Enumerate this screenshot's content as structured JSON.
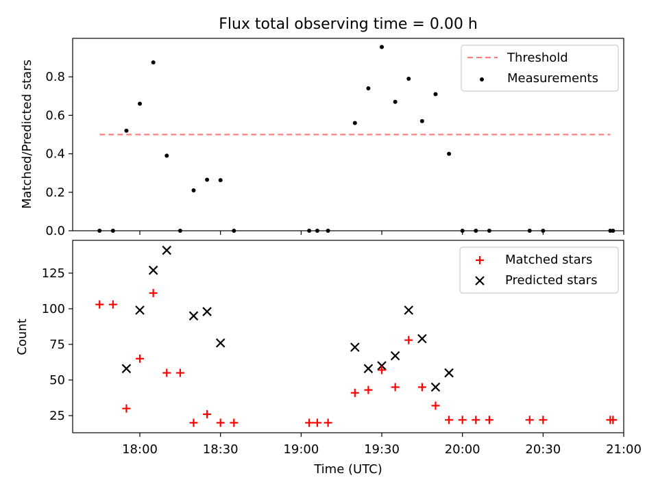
{
  "chart_data": [
    {
      "type": "scatter",
      "title": "Flux total observing time = 0.00 h",
      "xlabel": "",
      "ylabel": "Matched/Predicted stars",
      "xlim": [
        "17:35",
        "21:00"
      ],
      "ylim": [
        0,
        1.0
      ],
      "yticks": [
        0.0,
        0.2,
        0.4,
        0.6,
        0.8
      ],
      "ytick_labels": [
        "0.0",
        "0.2",
        "0.4",
        "0.6",
        "0.8"
      ],
      "grid": false,
      "legend": "top-right",
      "threshold": {
        "name": "Threshold",
        "y": 0.5,
        "x_start": "17:45",
        "x_end": "20:55",
        "color": "#ff7f7f",
        "style": "dashed"
      },
      "series": [
        {
          "name": "Measurements",
          "marker": "dot",
          "color": "#000000",
          "points": [
            {
              "x": "17:45",
              "y": 0.0
            },
            {
              "x": "17:50",
              "y": 0.0
            },
            {
              "x": "17:55",
              "y": 0.52
            },
            {
              "x": "18:00",
              "y": 0.66
            },
            {
              "x": "18:05",
              "y": 0.875
            },
            {
              "x": "18:10",
              "y": 0.39
            },
            {
              "x": "18:15",
              "y": 0.0
            },
            {
              "x": "18:20",
              "y": 0.21
            },
            {
              "x": "18:25",
              "y": 0.265
            },
            {
              "x": "18:30",
              "y": 0.263
            },
            {
              "x": "18:35",
              "y": 0.0
            },
            {
              "x": "19:03",
              "y": 0.0
            },
            {
              "x": "19:06",
              "y": 0.0
            },
            {
              "x": "19:10",
              "y": 0.0
            },
            {
              "x": "19:20",
              "y": 0.56
            },
            {
              "x": "19:25",
              "y": 0.74
            },
            {
              "x": "19:30",
              "y": 0.955
            },
            {
              "x": "19:35",
              "y": 0.67
            },
            {
              "x": "19:40",
              "y": 0.79
            },
            {
              "x": "19:45",
              "y": 0.57
            },
            {
              "x": "19:50",
              "y": 0.71
            },
            {
              "x": "19:55",
              "y": 0.4
            },
            {
              "x": "20:00",
              "y": 0.0
            },
            {
              "x": "20:05",
              "y": 0.0
            },
            {
              "x": "20:10",
              "y": 0.0
            },
            {
              "x": "20:25",
              "y": 0.0
            },
            {
              "x": "20:30",
              "y": 0.0
            },
            {
              "x": "20:55",
              "y": 0.0
            },
            {
              "x": "20:56",
              "y": 0.0
            }
          ]
        }
      ]
    },
    {
      "type": "scatter",
      "title": "",
      "xlabel": "Time (UTC)",
      "ylabel": "Count",
      "xlim": [
        "17:35",
        "21:00"
      ],
      "ylim": [
        13,
        148
      ],
      "yticks": [
        25,
        50,
        75,
        100,
        125
      ],
      "ytick_labels": [
        "25",
        "50",
        "75",
        "100",
        "125"
      ],
      "xticks": [
        "18:00",
        "18:30",
        "19:00",
        "19:30",
        "20:00",
        "20:30",
        "21:00"
      ],
      "xtick_labels": [
        "18:00",
        "18:30",
        "19:00",
        "19:30",
        "20:00",
        "20:30",
        "21:00"
      ],
      "grid": false,
      "legend": "top-right",
      "series": [
        {
          "name": "Matched stars",
          "marker": "plus",
          "color": "#ff0000",
          "points": [
            {
              "x": "17:45",
              "y": 103
            },
            {
              "x": "17:50",
              "y": 103
            },
            {
              "x": "17:55",
              "y": 30
            },
            {
              "x": "18:00",
              "y": 65
            },
            {
              "x": "18:05",
              "y": 111
            },
            {
              "x": "18:10",
              "y": 55
            },
            {
              "x": "18:15",
              "y": 55
            },
            {
              "x": "18:20",
              "y": 20
            },
            {
              "x": "18:25",
              "y": 26
            },
            {
              "x": "18:30",
              "y": 20
            },
            {
              "x": "18:35",
              "y": 20
            },
            {
              "x": "19:03",
              "y": 20
            },
            {
              "x": "19:06",
              "y": 20
            },
            {
              "x": "19:10",
              "y": 20
            },
            {
              "x": "19:20",
              "y": 41
            },
            {
              "x": "19:25",
              "y": 43
            },
            {
              "x": "19:30",
              "y": 57
            },
            {
              "x": "19:35",
              "y": 45
            },
            {
              "x": "19:40",
              "y": 78
            },
            {
              "x": "19:45",
              "y": 45
            },
            {
              "x": "19:50",
              "y": 32
            },
            {
              "x": "19:55",
              "y": 22
            },
            {
              "x": "20:00",
              "y": 22
            },
            {
              "x": "20:05",
              "y": 22
            },
            {
              "x": "20:10",
              "y": 22
            },
            {
              "x": "20:25",
              "y": 22
            },
            {
              "x": "20:30",
              "y": 22
            },
            {
              "x": "20:55",
              "y": 22
            },
            {
              "x": "20:56",
              "y": 22
            }
          ]
        },
        {
          "name": "Predicted stars",
          "marker": "x",
          "color": "#000000",
          "points": [
            {
              "x": "17:55",
              "y": 58
            },
            {
              "x": "18:00",
              "y": 99
            },
            {
              "x": "18:05",
              "y": 127
            },
            {
              "x": "18:10",
              "y": 141
            },
            {
              "x": "18:20",
              "y": 95
            },
            {
              "x": "18:25",
              "y": 98
            },
            {
              "x": "18:30",
              "y": 76
            },
            {
              "x": "19:20",
              "y": 73
            },
            {
              "x": "19:25",
              "y": 58
            },
            {
              "x": "19:30",
              "y": 60
            },
            {
              "x": "19:35",
              "y": 67
            },
            {
              "x": "19:40",
              "y": 99
            },
            {
              "x": "19:45",
              "y": 79
            },
            {
              "x": "19:50",
              "y": 45
            },
            {
              "x": "19:55",
              "y": 55
            }
          ]
        }
      ]
    }
  ]
}
